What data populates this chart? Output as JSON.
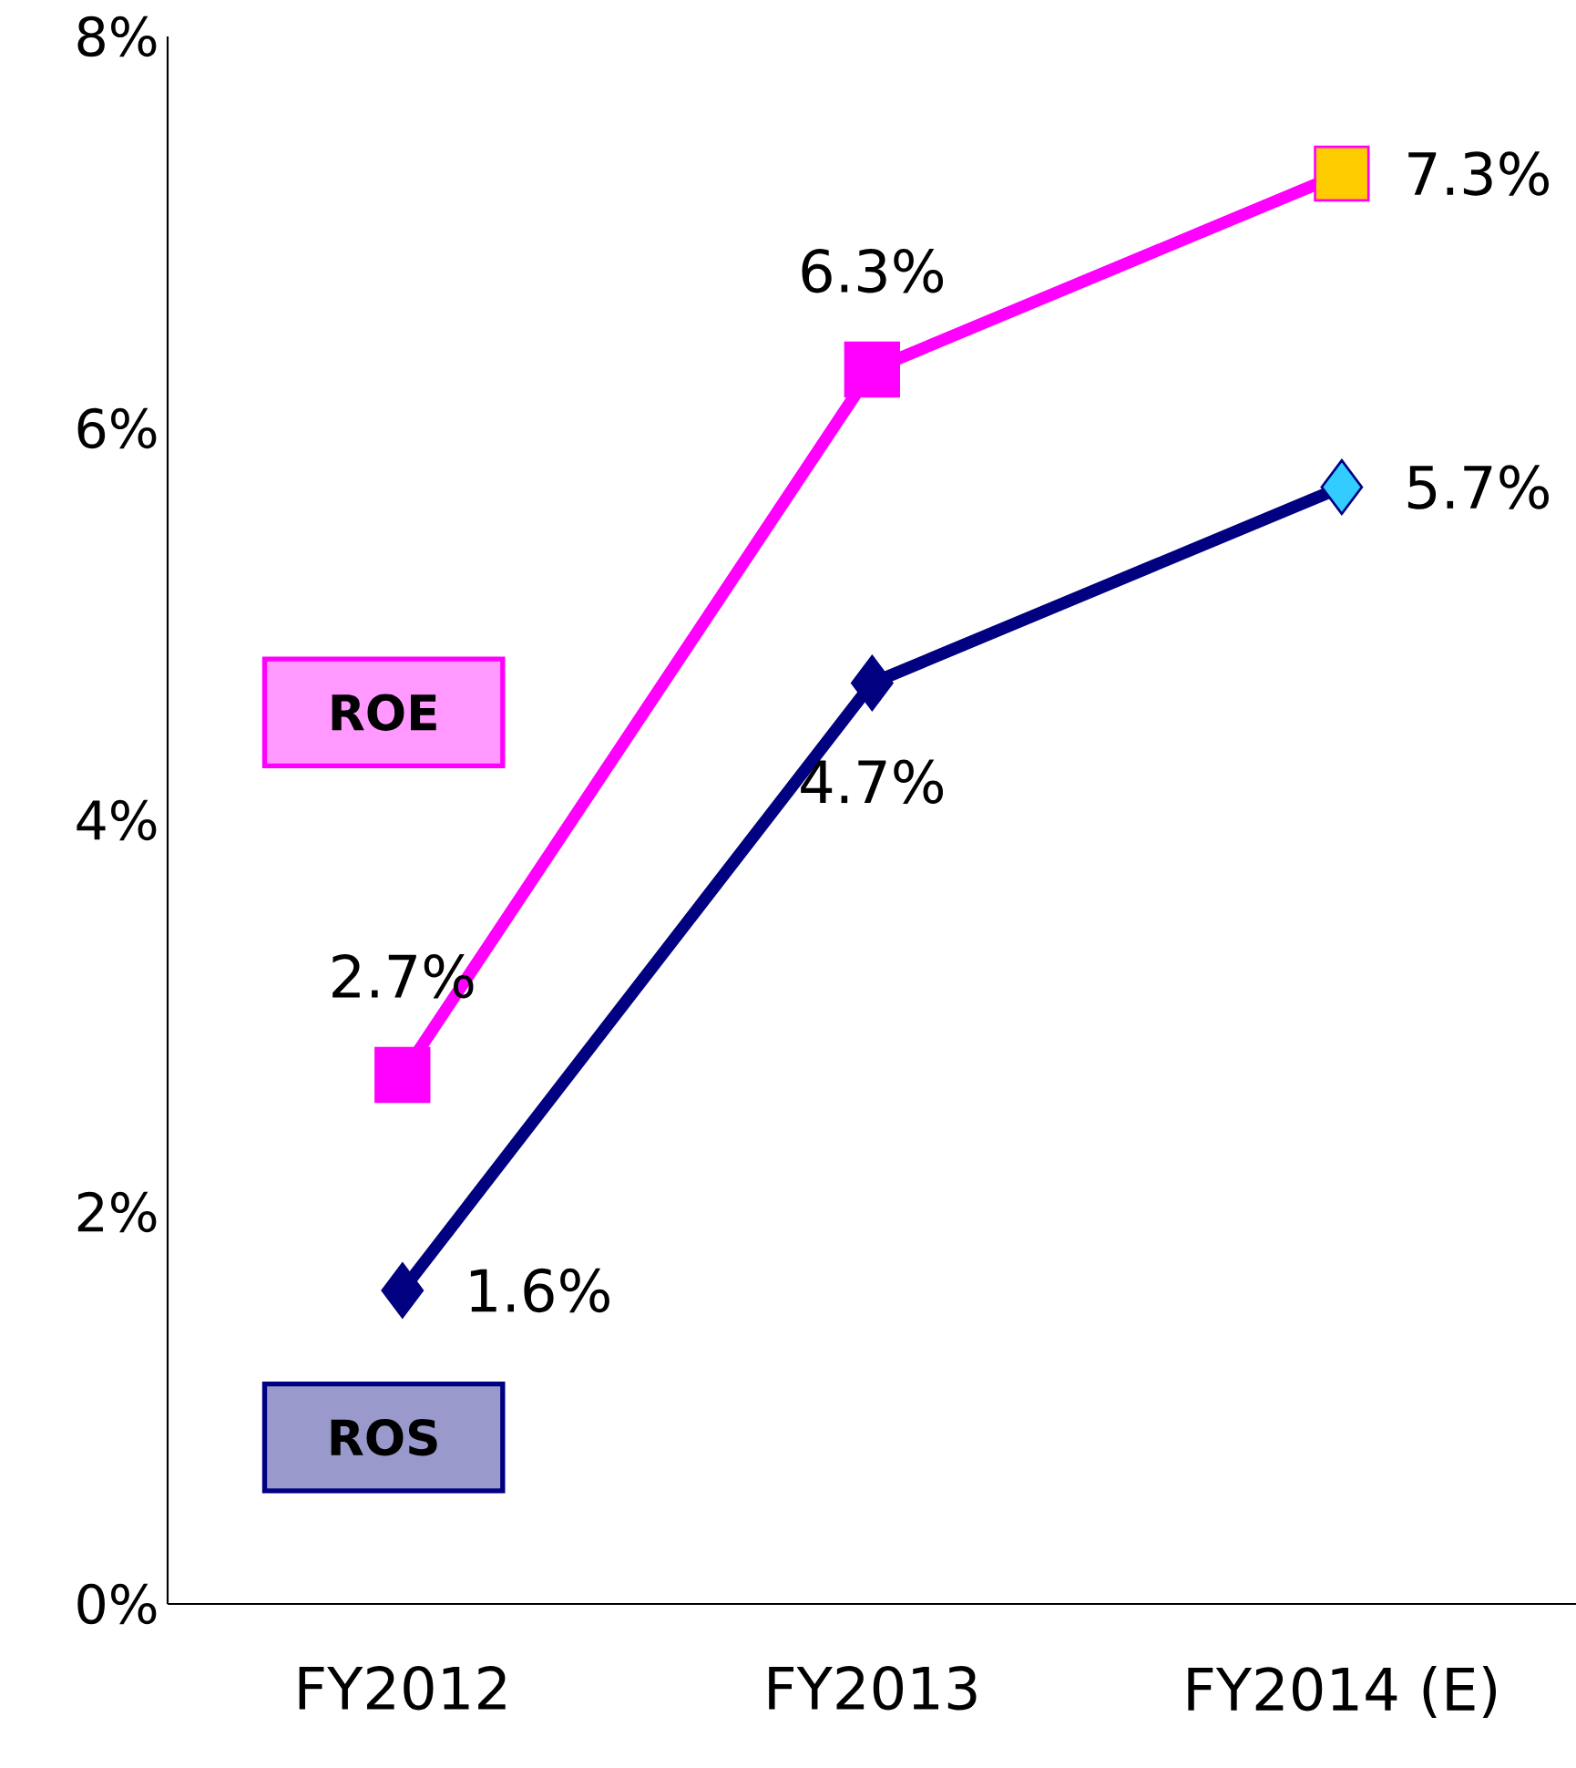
{
  "chart_data": {
    "type": "line",
    "categories": [
      "FY2012",
      "FY2013",
      "FY2014 (E)"
    ],
    "series": [
      {
        "name": "ROE",
        "color": "#ff00ff",
        "colors": [
          "#ff00ff",
          "#ff00ff",
          "#ffcc00"
        ],
        "marker": "square",
        "values": [
          2.7,
          6.3,
          7.3
        ],
        "value_labels": [
          "2.7%",
          "6.3%",
          "7.3%"
        ]
      },
      {
        "name": "ROS",
        "color": "#000080",
        "colors": [
          "#000080",
          "#000080",
          "#33ccff"
        ],
        "marker": "diamond",
        "values": [
          1.6,
          4.7,
          5.7
        ],
        "value_labels": [
          "1.6%",
          "4.7%",
          "5.7%"
        ]
      }
    ],
    "ylim": [
      0,
      8
    ],
    "yticks": [
      {
        "value": 0,
        "label": "0%"
      },
      {
        "value": 2,
        "label": "2%"
      },
      {
        "value": 4,
        "label": "4%"
      },
      {
        "value": 6,
        "label": "6%"
      },
      {
        "value": 8,
        "label": "8%"
      }
    ],
    "grid": false,
    "legend": "left"
  }
}
